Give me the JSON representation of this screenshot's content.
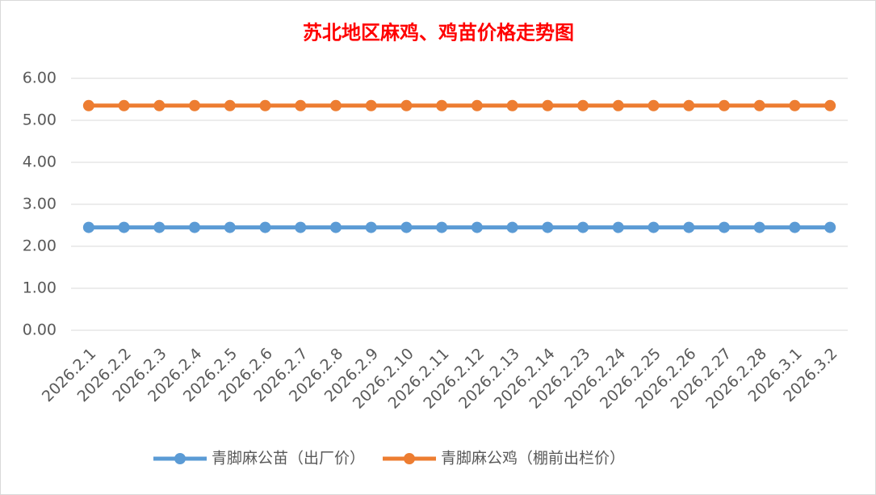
{
  "chart_data": {
    "type": "line",
    "title": "苏北地区麻鸡、鸡苗价格走势图",
    "categories": [
      "2026.2.1",
      "2026.2.2",
      "2026.2.3",
      "2026.2.4",
      "2026.2.5",
      "2026.2.6",
      "2026.2.7",
      "2026.2.8",
      "2026.2.9",
      "2026.2.10",
      "2026.2.11",
      "2026.2.12",
      "2026.2.13",
      "2026.2.14",
      "2026.2.23",
      "2026.2.24",
      "2026.2.25",
      "2026.2.26",
      "2026.2.27",
      "2026.2.28",
      "2026.3.1",
      "2026.3.2"
    ],
    "series": [
      {
        "name": "青脚麻公苗（出厂价）",
        "color": "#5b9bd5",
        "values": [
          2.45,
          2.45,
          2.45,
          2.45,
          2.45,
          2.45,
          2.45,
          2.45,
          2.45,
          2.45,
          2.45,
          2.45,
          2.45,
          2.45,
          2.45,
          2.45,
          2.45,
          2.45,
          2.45,
          2.45,
          2.45,
          2.45
        ]
      },
      {
        "name": "青脚麻公鸡（棚前出栏价）",
        "color": "#ed7d31",
        "values": [
          5.35,
          5.35,
          5.35,
          5.35,
          5.35,
          5.35,
          5.35,
          5.35,
          5.35,
          5.35,
          5.35,
          5.35,
          5.35,
          5.35,
          5.35,
          5.35,
          5.35,
          5.35,
          5.35,
          5.35,
          5.35,
          5.35
        ]
      }
    ],
    "ylim": [
      0,
      6
    ],
    "yticks": [
      {
        "value": 0,
        "label": "0.00"
      },
      {
        "value": 1,
        "label": "1.00"
      },
      {
        "value": 2,
        "label": "2.00"
      },
      {
        "value": 3,
        "label": "3.00"
      },
      {
        "value": 4,
        "label": "4.00"
      },
      {
        "value": 5,
        "label": "5.00"
      },
      {
        "value": 6,
        "label": "6.00"
      }
    ],
    "grid": true,
    "legend": "bottom"
  }
}
